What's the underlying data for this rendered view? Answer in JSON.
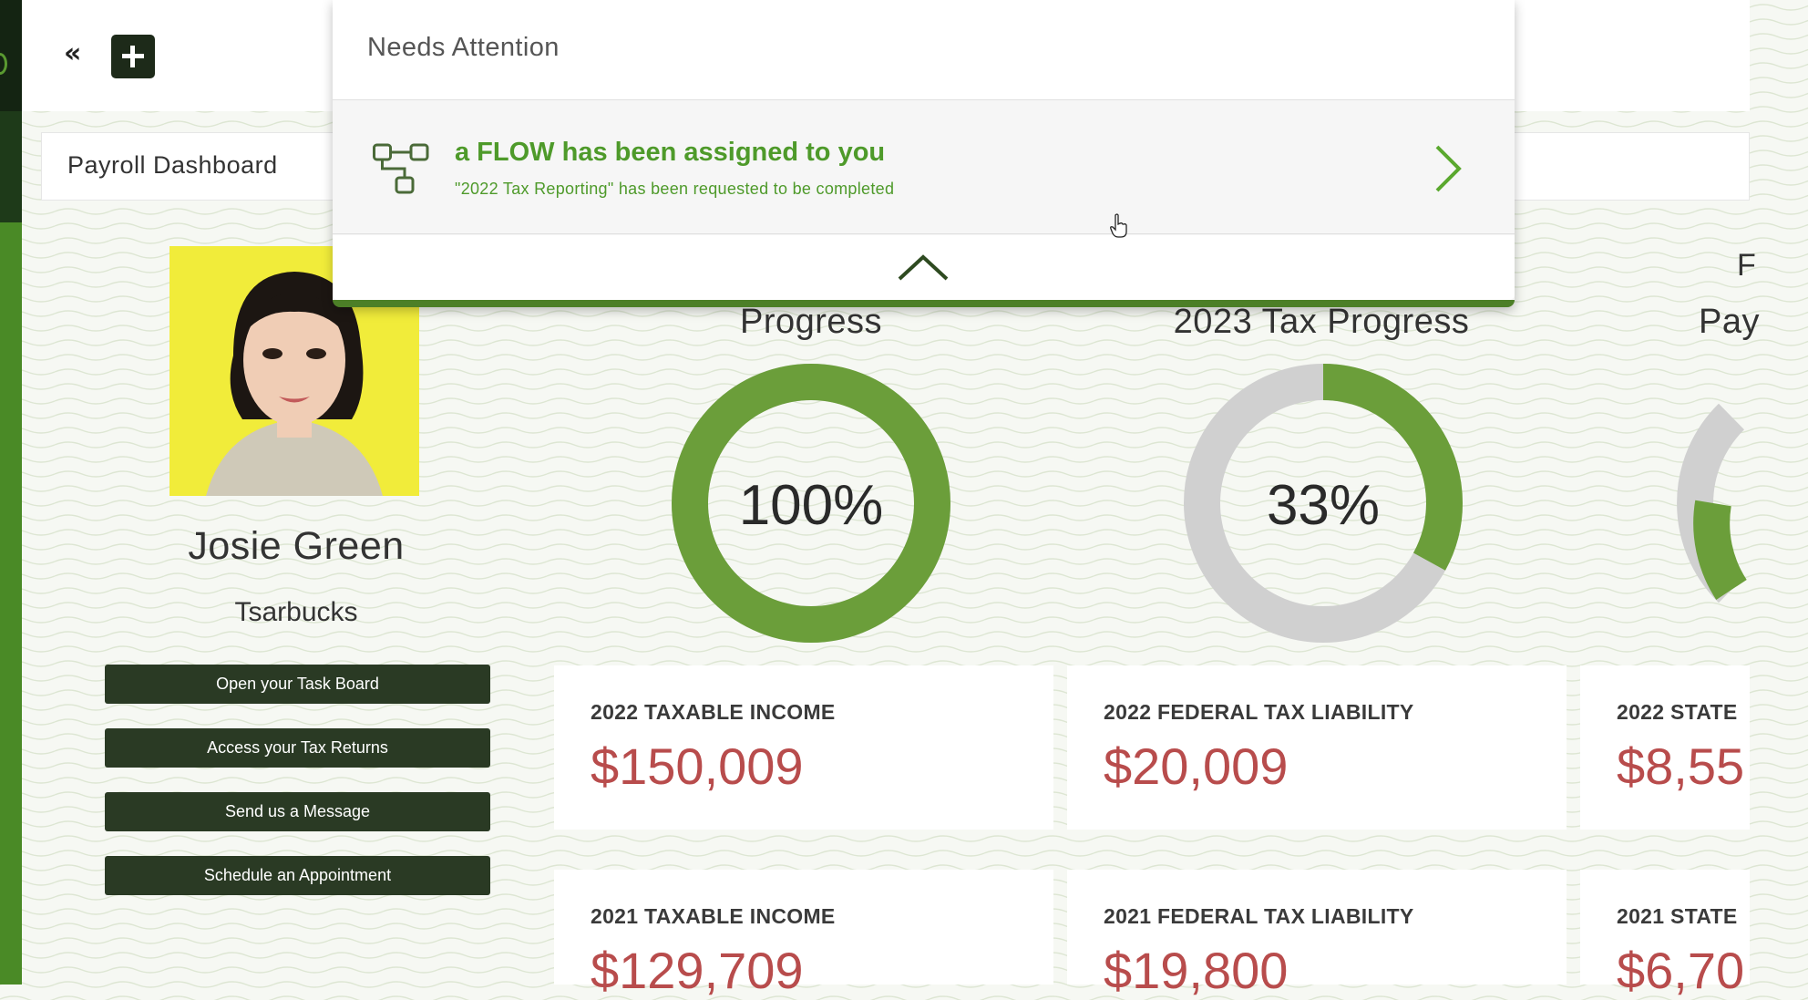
{
  "app": {
    "title": "Payroll Dashboard"
  },
  "topbar": {
    "collapse_icon": "double-chevron-left-icon",
    "collapse_label": "«",
    "add_icon": "plus-icon"
  },
  "profile": {
    "name": "Josie Green",
    "company": "Tsarbucks",
    "avatar": "profile-photo",
    "buttons": [
      {
        "label": "Open your Task Board"
      },
      {
        "label": "Access your Tax Returns"
      },
      {
        "label": "Send us a Message"
      },
      {
        "label": "Schedule an Appointment"
      }
    ]
  },
  "progress": [
    {
      "title": "Progress",
      "percent": 100,
      "label": "100%"
    },
    {
      "title": "2023 Tax Progress",
      "percent": 33,
      "label": "33%"
    },
    {
      "title": "Pay",
      "header_partial": "F"
    }
  ],
  "stats": [
    {
      "label": "2022 TAXABLE INCOME",
      "value": "$150,009"
    },
    {
      "label": "2022 FEDERAL TAX LIABILITY",
      "value": "$20,009"
    },
    {
      "label": "2022 STATE",
      "value": "$8,55"
    },
    {
      "label": "2021 TAXABLE INCOME",
      "value": "$129,709"
    },
    {
      "label": "2021 FEDERAL TAX LIABILITY",
      "value": "$19,800"
    },
    {
      "label": "2021 STATE",
      "value": "$6,70"
    }
  ],
  "popup": {
    "header": "Needs Attention",
    "item": {
      "title": "a FLOW has been assigned to you",
      "subtitle": "\"2022 Tax Reporting\" has been requested to be completed",
      "icon": "flow-diagram-icon",
      "action_icon": "chevron-right-icon"
    },
    "collapse_icon": "chevron-up-icon"
  },
  "colors": {
    "brand_green": "#6b9e3a",
    "popup_accent": "#4c7f27",
    "button_dark": "#2a3a24",
    "value_red": "#b84c4c",
    "donut_track": "#d0d0d0"
  }
}
